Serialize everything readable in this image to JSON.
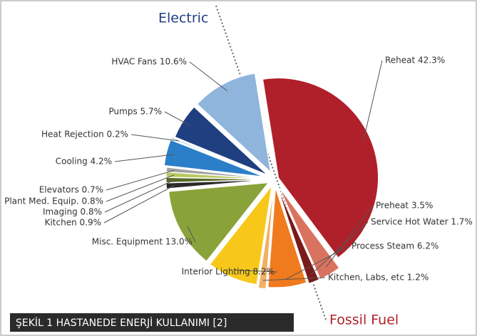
{
  "chart_data": {
    "type": "pie",
    "categories": [
      "Reheat 42.3%",
      "Preheat 3.5%",
      "Service Hot Water 1.7%",
      "Process Steam 6.2%",
      "Kitchen, Labs, etc 1.2%",
      "Interior Lighting 8.2%",
      "Misc. Equipment 13.0%",
      "Kitchen 0.9%",
      "Imaging 0.8%",
      "Plant Med. Equip. 0.8%",
      "Elevators 0.7%",
      "Cooling 4.2%",
      "Heat Rejection 0.2%",
      "Pumps 5.7%",
      "HVAC Fans 10.6%"
    ],
    "values": [
      42.3,
      3.5,
      1.7,
      6.2,
      1.2,
      8.2,
      13.0,
      0.9,
      0.8,
      0.8,
      0.7,
      4.2,
      0.2,
      5.7,
      10.6
    ],
    "colors": [
      "#b0202a",
      "#d9735f",
      "#7a1a1a",
      "#f07a1e",
      "#f2b060",
      "#f7c81a",
      "#8aa23a",
      "#2a2a2a",
      "#5a6a2a",
      "#b8c860",
      "#a0a0a0",
      "#2a7fc8",
      "#6ab0d8",
      "#1f3f80",
      "#8fb5dc"
    ],
    "annotations": [
      "Electric",
      "Fossil Fuel"
    ],
    "caption": "ŞEKİL 1 HASTANEDE ENERJİ KULLANIMI [2]"
  }
}
